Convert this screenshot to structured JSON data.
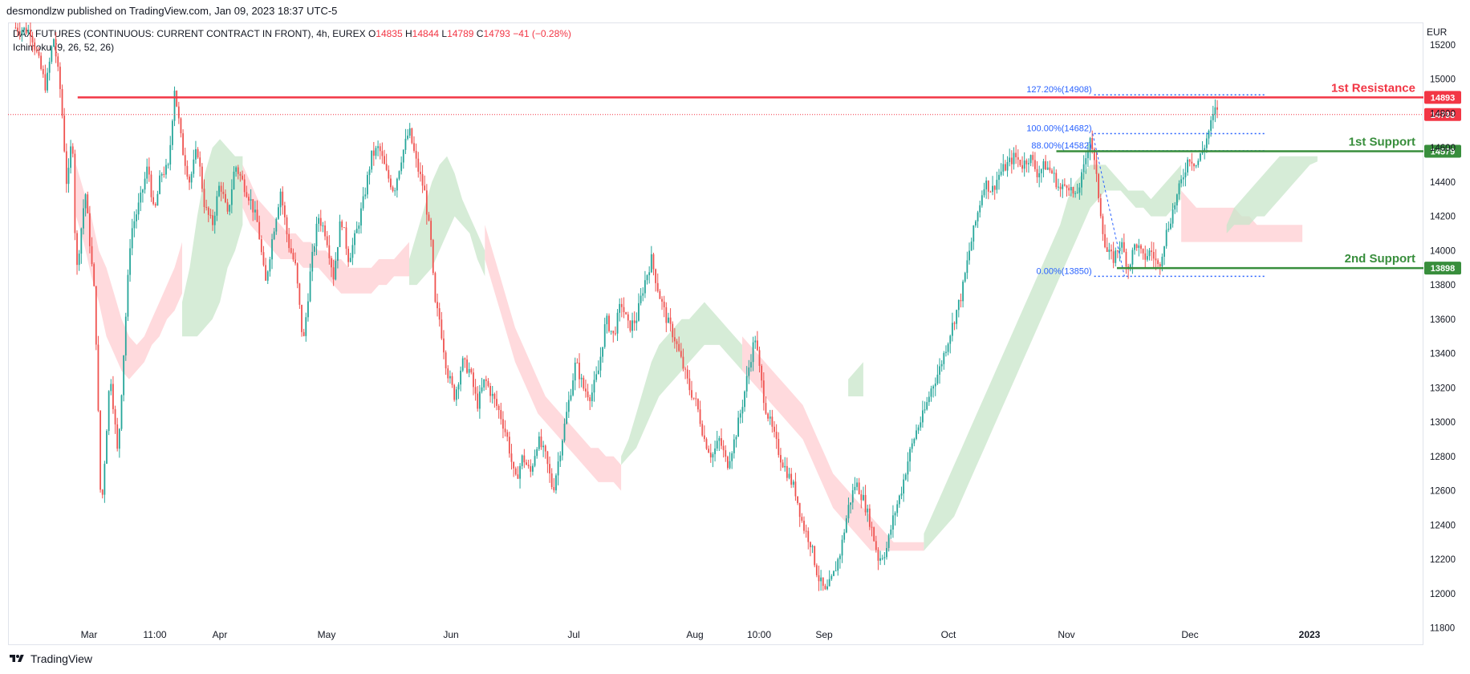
{
  "publisher_line": "desmondlzw published on TradingView.com, Jan 09, 2023 18:37 UTC-5",
  "legend": {
    "symbol": "DAX FUTURES (CONTINUOUS: CURRENT CONTRACT IN FRONT), 4h, EUREX",
    "open_label": "O",
    "open": "14835",
    "high_label": "H",
    "high": "14844",
    "low_label": "L",
    "low": "14789",
    "close_label": "C",
    "close": "14793",
    "change": "−41 (−0.28%)",
    "indicator": "Ichimoku (9, 26, 52, 26)"
  },
  "currency": "EUR",
  "footer": {
    "brand": "TradingView",
    "logo_icon": "tradingview-logo-icon"
  },
  "colors": {
    "up": "#26a69a",
    "down": "#ef5350",
    "resistance": "#f23645",
    "support": "#388e3c",
    "fib": "#2962ff",
    "cloud_bull": "#c8e6c9",
    "cloud_bear": "#ffcdd2",
    "price_badge": "#f23645"
  },
  "chart_data": {
    "type": "candlestick",
    "timeframe": "4h",
    "yaxis": {
      "min": 11700,
      "max": 15330,
      "ticks": [
        11800,
        12000,
        12200,
        12400,
        12600,
        12800,
        13000,
        13200,
        13400,
        13600,
        13800,
        14000,
        14200,
        14400,
        14600,
        14800,
        15000,
        15200
      ]
    },
    "xaxis": {
      "ticks": [
        "Mar",
        "11:00",
        "Apr",
        "May",
        "Jun",
        "Jul",
        "Aug",
        "10:00",
        "Sep",
        "Oct",
        "Nov",
        "Dec",
        "2023"
      ],
      "tick_bold": [
        "2023"
      ]
    },
    "price_path": [
      [
        0,
        15300
      ],
      [
        2,
        15280
      ],
      [
        4,
        14950
      ],
      [
        5,
        15250
      ],
      [
        6,
        14900
      ],
      [
        6.8,
        14350
      ],
      [
        7.5,
        14700
      ],
      [
        8,
        13850
      ],
      [
        9.2,
        14350
      ],
      [
        10.5,
        13700
      ],
      [
        11.3,
        12450
      ],
      [
        12.5,
        13300
      ],
      [
        13.5,
        12800
      ],
      [
        14.6,
        13650
      ],
      [
        15.2,
        14100
      ],
      [
        16.5,
        14300
      ],
      [
        17.5,
        14500
      ],
      [
        18.3,
        14200
      ],
      [
        19.2,
        14450
      ],
      [
        20.2,
        14480
      ],
      [
        21,
        14950
      ],
      [
        22,
        14600
      ],
      [
        23,
        14400
      ],
      [
        24,
        14600
      ],
      [
        25,
        14250
      ],
      [
        26,
        14150
      ],
      [
        27,
        14400
      ],
      [
        28,
        14200
      ],
      [
        29,
        14500
      ],
      [
        30,
        14400
      ],
      [
        31,
        14300
      ],
      [
        32,
        14150
      ],
      [
        33,
        13800
      ],
      [
        34,
        14100
      ],
      [
        35,
        14350
      ],
      [
        36,
        14050
      ],
      [
        37,
        13900
      ],
      [
        38,
        13450
      ],
      [
        39,
        13900
      ],
      [
        40,
        14200
      ],
      [
        41,
        14100
      ],
      [
        42,
        13850
      ],
      [
        43,
        14200
      ],
      [
        44,
        13950
      ],
      [
        45,
        14100
      ],
      [
        46,
        14300
      ],
      [
        47,
        14550
      ],
      [
        48,
        14600
      ],
      [
        49,
        14450
      ],
      [
        50,
        14350
      ],
      [
        51,
        14550
      ],
      [
        52,
        14700
      ],
      [
        53,
        14500
      ],
      [
        54,
        14350
      ],
      [
        55,
        14000
      ],
      [
        55.3,
        13700
      ],
      [
        56,
        13600
      ],
      [
        57,
        13300
      ],
      [
        58,
        13150
      ],
      [
        59,
        13350
      ],
      [
        60,
        13300
      ],
      [
        61,
        13100
      ],
      [
        62,
        13250
      ],
      [
        63,
        13150
      ],
      [
        64,
        13050
      ],
      [
        65,
        12900
      ],
      [
        66,
        12650
      ],
      [
        67,
        12800
      ],
      [
        68,
        12700
      ],
      [
        69,
        12900
      ],
      [
        70,
        12800
      ],
      [
        71,
        12600
      ],
      [
        72,
        12850
      ],
      [
        73,
        13100
      ],
      [
        74,
        13350
      ],
      [
        75,
        13200
      ],
      [
        76,
        13150
      ],
      [
        77,
        13300
      ],
      [
        78,
        13600
      ],
      [
        79,
        13500
      ],
      [
        80,
        13700
      ],
      [
        81,
        13550
      ],
      [
        82,
        13600
      ],
      [
        83,
        13800
      ],
      [
        84,
        13950
      ],
      [
        85,
        13750
      ],
      [
        86,
        13600
      ],
      [
        87,
        13500
      ],
      [
        88,
        13350
      ],
      [
        89,
        13200
      ],
      [
        90,
        13100
      ],
      [
        91,
        12900
      ],
      [
        92,
        12800
      ],
      [
        93,
        12900
      ],
      [
        94,
        12750
      ],
      [
        95,
        12900
      ],
      [
        96,
        13100
      ],
      [
        97,
        13350
      ],
      [
        97.7,
        13500
      ],
      [
        98.3,
        13300
      ],
      [
        99,
        13100
      ],
      [
        100,
        12950
      ],
      [
        101,
        12800
      ],
      [
        102,
        12700
      ],
      [
        103,
        12600
      ],
      [
        104,
        12400
      ],
      [
        105,
        12300
      ],
      [
        106,
        12100
      ],
      [
        107,
        12000
      ],
      [
        108,
        12100
      ],
      [
        109,
        12250
      ],
      [
        110,
        12500
      ],
      [
        111,
        12650
      ],
      [
        112,
        12550
      ],
      [
        113,
        12400
      ],
      [
        114,
        12200
      ],
      [
        115,
        12250
      ],
      [
        116,
        12450
      ],
      [
        117,
        12600
      ],
      [
        118,
        12800
      ],
      [
        119,
        12950
      ],
      [
        120,
        13050
      ],
      [
        121,
        13200
      ],
      [
        122,
        13300
      ],
      [
        123,
        13450
      ],
      [
        124,
        13600
      ],
      [
        125,
        13750
      ],
      [
        126,
        14000
      ],
      [
        127,
        14200
      ],
      [
        128,
        14400
      ],
      [
        129,
        14350
      ],
      [
        130,
        14450
      ],
      [
        131,
        14500
      ],
      [
        132,
        14550
      ],
      [
        133,
        14500
      ],
      [
        134,
        14550
      ],
      [
        135,
        14450
      ],
      [
        136,
        14500
      ],
      [
        137,
        14450
      ],
      [
        138,
        14350
      ],
      [
        139,
        14400
      ],
      [
        140,
        14300
      ],
      [
        141,
        14450
      ],
      [
        142,
        14680
      ],
      [
        143,
        14350
      ],
      [
        144,
        14000
      ],
      [
        145,
        13950
      ],
      [
        146,
        14050
      ],
      [
        147,
        13900
      ],
      [
        148,
        14050
      ],
      [
        149,
        13950
      ],
      [
        150,
        14000
      ],
      [
        151,
        13900
      ],
      [
        152,
        14100
      ],
      [
        153,
        14250
      ],
      [
        154,
        14400
      ],
      [
        155,
        14550
      ],
      [
        156,
        14500
      ],
      [
        157,
        14600
      ],
      [
        158,
        14750
      ],
      [
        158.7,
        14844
      ],
      [
        159,
        14793
      ]
    ],
    "cloud": [
      {
        "from": 8,
        "to": 22,
        "top": [
          14500,
          14350,
          14200,
          14000,
          13900,
          13750,
          13600,
          13500,
          13450,
          13500,
          13600,
          13700,
          13800,
          13900,
          14050
        ],
        "bottom": [
          14200,
          14050,
          13850,
          13700,
          13500,
          13400,
          13300,
          13250,
          13300,
          13350,
          13450,
          13500,
          13600,
          13650,
          13750
        ],
        "kind": "bear"
      },
      {
        "from": 22,
        "to": 30,
        "top": [
          13700,
          13900,
          14200,
          14450,
          14600,
          14650,
          14600,
          14550,
          14550
        ],
        "bottom": [
          13500,
          13500,
          13500,
          13550,
          13600,
          13700,
          13900,
          14000,
          14150
        ],
        "kind": "bull"
      },
      {
        "from": 30,
        "to": 52,
        "top": [
          14500,
          14400,
          14300,
          14250,
          14200,
          14150,
          14100,
          14100,
          14050,
          14050,
          14000,
          14000,
          13950,
          13950,
          13900,
          13900,
          13900,
          13900,
          13950,
          13950,
          13950,
          14000,
          14050
        ],
        "bottom": [
          14250,
          14150,
          14100,
          14050,
          14000,
          13950,
          13950,
          13950,
          13900,
          13900,
          13900,
          13850,
          13800,
          13750,
          13750,
          13750,
          13750,
          13750,
          13800,
          13800,
          13850,
          13850,
          13850
        ],
        "kind": "bear"
      },
      {
        "from": 52,
        "to": 62,
        "top": [
          13950,
          14100,
          14250,
          14400,
          14500,
          14550,
          14450,
          14300,
          14200,
          14100,
          14000
        ],
        "bottom": [
          13800,
          13800,
          13850,
          13900,
          14000,
          14100,
          14200,
          14150,
          14100,
          13950,
          13850
        ],
        "kind": "bull"
      },
      {
        "from": 62,
        "to": 80,
        "top": [
          14150,
          14000,
          13850,
          13700,
          13550,
          13450,
          13350,
          13250,
          13150,
          13100,
          13050,
          13000,
          12950,
          12900,
          12850,
          12850,
          12800,
          12800,
          12750
        ],
        "bottom": [
          13950,
          13800,
          13650,
          13500,
          13350,
          13250,
          13150,
          13050,
          13000,
          12950,
          12900,
          12850,
          12800,
          12750,
          12700,
          12650,
          12650,
          12650,
          12600
        ],
        "kind": "bear"
      },
      {
        "from": 80,
        "to": 96,
        "top": [
          12800,
          12900,
          13050,
          13200,
          13350,
          13450,
          13500,
          13550,
          13600,
          13600,
          13650,
          13700,
          13650,
          13600,
          13550,
          13500,
          13450
        ],
        "bottom": [
          12750,
          12800,
          12850,
          12950,
          13050,
          13150,
          13200,
          13250,
          13300,
          13350,
          13400,
          13450,
          13450,
          13450,
          13400,
          13350,
          13300
        ],
        "kind": "bull"
      },
      {
        "from": 96,
        "to": 120,
        "top": [
          13500,
          13450,
          13400,
          13350,
          13300,
          13250,
          13200,
          13150,
          13100,
          13000,
          12900,
          12800,
          12700,
          12650,
          12600,
          12550,
          12500,
          12450,
          12400,
          12350,
          12300,
          12300,
          12300,
          12300,
          12300
        ],
        "bottom": [
          13300,
          13250,
          13200,
          13150,
          13100,
          13050,
          13000,
          12950,
          12900,
          12800,
          12700,
          12600,
          12500,
          12450,
          12400,
          12350,
          12300,
          12250,
          12250,
          12250,
          12250,
          12250,
          12250,
          12250,
          12250
        ],
        "kind": "bear"
      },
      {
        "from": 110,
        "to": 112,
        "top": [
          13250,
          13300,
          13350
        ],
        "bottom": [
          13150,
          13150,
          13150
        ],
        "kind": "bull"
      },
      {
        "from": 120,
        "to": 154,
        "top": [
          12350,
          12450,
          12550,
          12650,
          12750,
          12850,
          12950,
          13050,
          13150,
          13250,
          13350,
          13450,
          13550,
          13650,
          13750,
          13850,
          13950,
          14050,
          14150,
          14300,
          14400,
          14450,
          14500,
          14500,
          14500,
          14450,
          14400,
          14350,
          14350,
          14350,
          14300,
          14350,
          14400,
          14450,
          14500
        ],
        "bottom": [
          12250,
          12300,
          12350,
          12400,
          12450,
          12550,
          12650,
          12750,
          12850,
          12950,
          13050,
          13150,
          13250,
          13350,
          13450,
          13550,
          13650,
          13750,
          13850,
          13950,
          14050,
          14150,
          14250,
          14300,
          14350,
          14350,
          14350,
          14300,
          14250,
          14250,
          14200,
          14200,
          14200,
          14250,
          14300
        ],
        "kind": "bull"
      },
      {
        "from": 154,
        "to": 170,
        "top": [
          14350,
          14300,
          14250,
          14250,
          14250,
          14250,
          14250,
          14250,
          14200,
          14200,
          14150,
          14150,
          14150,
          14150,
          14150,
          14150,
          14150
        ],
        "bottom": [
          14050,
          14050,
          14050,
          14050,
          14050,
          14050,
          14050,
          14050,
          14050,
          14050,
          14050,
          14050,
          14050,
          14050,
          14050,
          14050,
          14050
        ],
        "kind": "bear"
      },
      {
        "from": 160,
        "to": 172,
        "top": [
          14150,
          14250,
          14300,
          14350,
          14400,
          14450,
          14500,
          14550,
          14550,
          14550,
          14550,
          14550,
          14550
        ],
        "bottom": [
          14100,
          14150,
          14150,
          14150,
          14200,
          14200,
          14250,
          14300,
          14350,
          14400,
          14450,
          14500,
          14520
        ],
        "kind": "bull"
      }
    ],
    "levels": [
      {
        "name": "1st Resistance",
        "value": 14893,
        "label": "14893",
        "color": "#f23645",
        "line": "solid",
        "from_x": 8.2
      },
      {
        "name": "1st Support",
        "value": 14579,
        "label": "14579",
        "color": "#388e3c",
        "line": "solid",
        "from_x": 137.5
      },
      {
        "name": "2nd Support",
        "value": 13898,
        "label": "13898",
        "color": "#388e3c",
        "line": "solid",
        "from_x": 145.5
      }
    ],
    "last_price": {
      "value": 14793,
      "label": "14793"
    },
    "fib": [
      {
        "label": "127.20%(14908)",
        "value": 14908
      },
      {
        "label": "100.00%(14682)",
        "value": 14682
      },
      {
        "label": "88.00%(14582)",
        "value": 14582
      },
      {
        "label": "0.00%(13850)",
        "value": 13850
      }
    ],
    "fib_range_x": [
      142.5,
      165
    ]
  }
}
